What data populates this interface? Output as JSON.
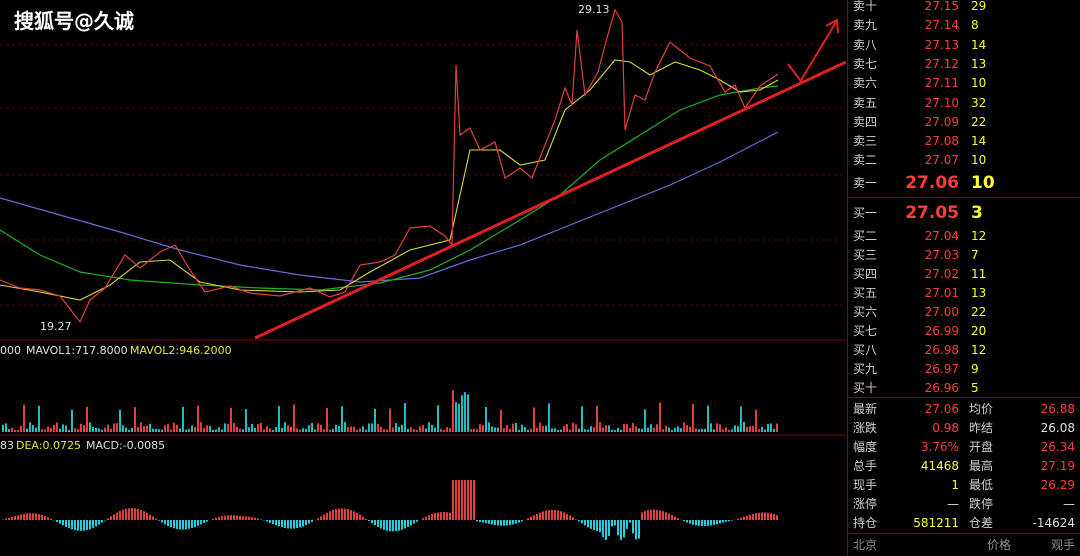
{
  "watermark": "搜狐号@久诚",
  "price_chart": {
    "high_label": "29.13",
    "low_label": "19.27"
  },
  "volume_panel": {
    "labels": [
      "000",
      "MAVOL1:717.8000",
      "MAVOL2:946.2000"
    ]
  },
  "macd_panel": {
    "labels": [
      "83",
      "DEA:0.0725",
      "MACD:-0.0085"
    ]
  },
  "order_book": {
    "sell": [
      {
        "label": "卖十",
        "price": "27.15",
        "qty": "29"
      },
      {
        "label": "卖九",
        "price": "27.14",
        "qty": "8"
      },
      {
        "label": "卖八",
        "price": "27.13",
        "qty": "14"
      },
      {
        "label": "卖七",
        "price": "27.12",
        "qty": "13"
      },
      {
        "label": "卖六",
        "price": "27.11",
        "qty": "10"
      },
      {
        "label": "卖五",
        "price": "27.10",
        "qty": "32"
      },
      {
        "label": "卖四",
        "price": "27.09",
        "qty": "22"
      },
      {
        "label": "卖三",
        "price": "27.08",
        "qty": "14"
      },
      {
        "label": "卖二",
        "price": "27.07",
        "qty": "10"
      },
      {
        "label": "卖一",
        "price": "27.06",
        "qty": "10"
      }
    ],
    "buy": [
      {
        "label": "买一",
        "price": "27.05",
        "qty": "3"
      },
      {
        "label": "买二",
        "price": "27.04",
        "qty": "12"
      },
      {
        "label": "买三",
        "price": "27.03",
        "qty": "7"
      },
      {
        "label": "买四",
        "price": "27.02",
        "qty": "11"
      },
      {
        "label": "买五",
        "price": "27.01",
        "qty": "13"
      },
      {
        "label": "买六",
        "price": "27.00",
        "qty": "22"
      },
      {
        "label": "买七",
        "price": "26.99",
        "qty": "20"
      },
      {
        "label": "买八",
        "price": "26.98",
        "qty": "12"
      },
      {
        "label": "买九",
        "price": "26.97",
        "qty": "9"
      },
      {
        "label": "买十",
        "price": "26.96",
        "qty": "5"
      }
    ]
  },
  "stats": [
    [
      "最新",
      "27.06",
      "均价",
      "26.88"
    ],
    [
      "涨跌",
      "0.98",
      "昨结",
      "26.08"
    ],
    [
      "幅度",
      "3.76%",
      "开盘",
      "26.34"
    ],
    [
      "总手",
      "41468",
      "最高",
      "27.19"
    ],
    [
      "现手",
      "1",
      "最低",
      "26.29"
    ],
    [
      "涨停",
      "—",
      "跌停",
      "—"
    ],
    [
      "持仓",
      "581211",
      "仓差",
      "-14624"
    ]
  ],
  "footer": [
    "北京",
    "价格",
    "观手"
  ]
}
